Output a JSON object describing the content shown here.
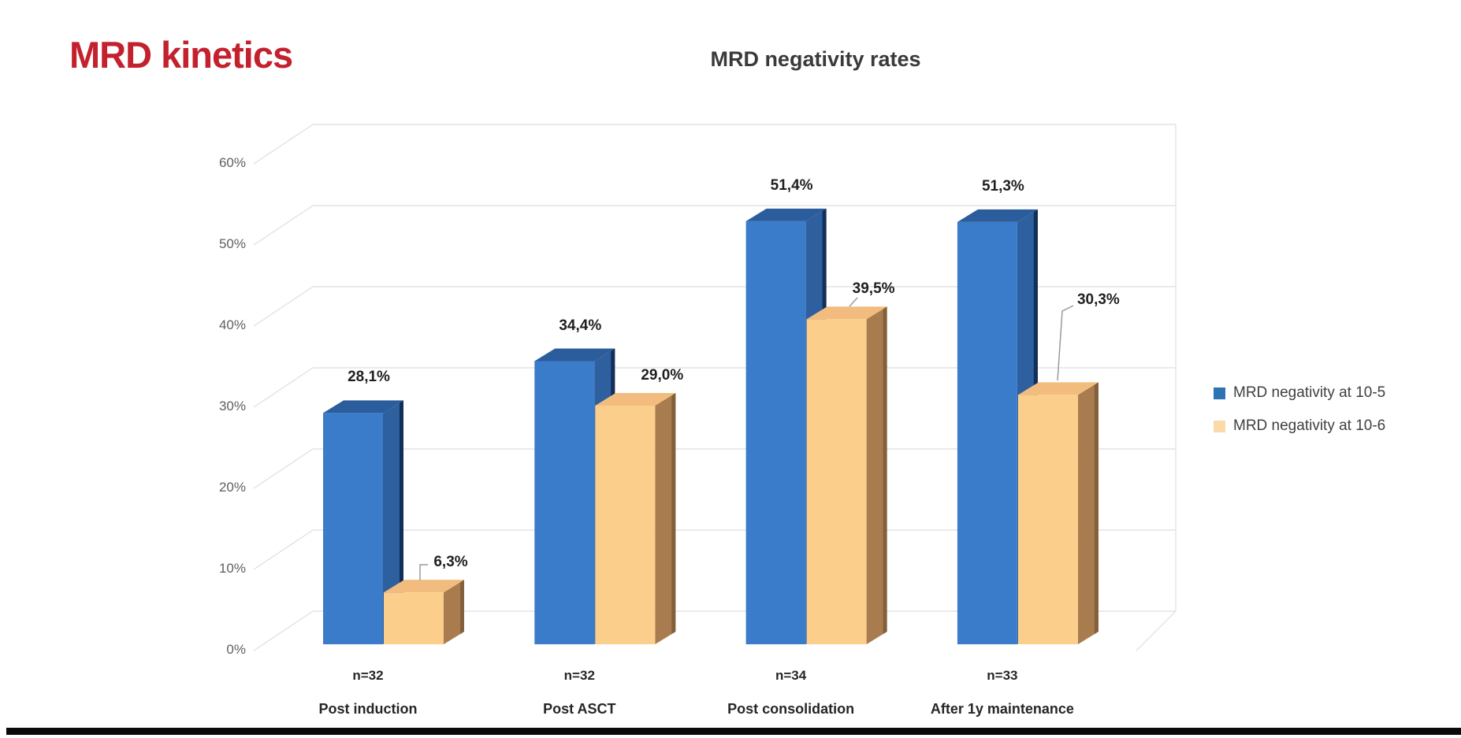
{
  "slide": {
    "title": "MRD kinetics",
    "title_color": "#C4212E"
  },
  "chart_data": {
    "type": "bar",
    "variant": "3d-clustered-column",
    "title": "MRD negativity rates",
    "categories": [
      "Post induction",
      "Post ASCT",
      "Post consolidation",
      "After 1y maintenance"
    ],
    "category_sublabels": [
      "n=32",
      "n=32",
      "n=34",
      "n=33"
    ],
    "series": [
      {
        "name": "MRD negativity at 10-5",
        "values": [
          28.1,
          34.4,
          51.4,
          51.3
        ],
        "labels": [
          "28,1%",
          "34,4%",
          "51,4%",
          "51,3%"
        ],
        "front_color": "#3A7CC9",
        "top_color": "#2B5C9C",
        "side_color": "#2E5F9E",
        "edge_color": "#142E57",
        "legend_color": "#2E73B4"
      },
      {
        "name": "MRD negativity at 10-6",
        "values": [
          6.3,
          29.0,
          39.5,
          30.3
        ],
        "labels": [
          "6,3%",
          "29,0%",
          "39,5%",
          "30,3%"
        ],
        "front_color": "#FCCE8C",
        "top_color": "#F2BC7E",
        "side_color": "#A87C4E",
        "edge_color": "#83603B",
        "legend_color": "#FBD9A8"
      }
    ],
    "xlabel": "",
    "ylabel": "",
    "ylim": [
      0,
      60
    ],
    "yticks": [
      "0%",
      "10%",
      "20%",
      "30%",
      "40%",
      "50%",
      "60%"
    ],
    "grid": true,
    "legend_position": "right",
    "gridline_color": "#E4E4E4",
    "leader_line_color": "#9A9A9A"
  }
}
